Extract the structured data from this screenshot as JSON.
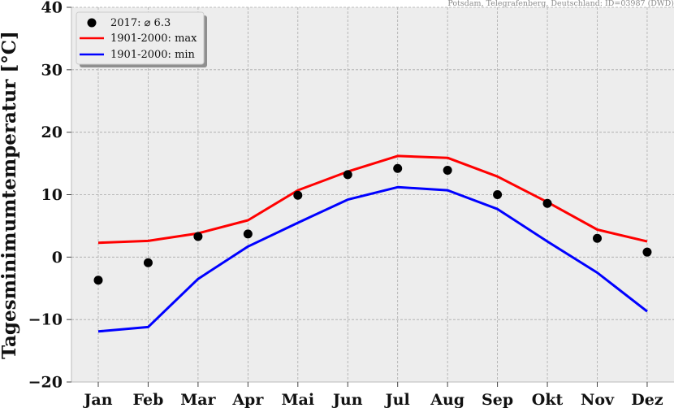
{
  "chart_data": {
    "type": "line",
    "source_note": "Potsdam, Telegrafenberg, Deutschland: ID=03987 (DWD)",
    "ylabel": "Tagesminimumtemperatur [°C]",
    "ylim": [
      -20,
      40
    ],
    "yticks": [
      -20,
      -10,
      0,
      10,
      20,
      30,
      40
    ],
    "yticklabels": [
      "−20",
      "−10",
      "0",
      "10",
      "20",
      "30",
      "40"
    ],
    "categories": [
      "Jan",
      "Feb",
      "Mar",
      "Apr",
      "Mai",
      "Jun",
      "Jul",
      "Aug",
      "Sep",
      "Okt",
      "Nov",
      "Dez"
    ],
    "grid": true,
    "legend_position": "top-left",
    "series": [
      {
        "name": "2017: ⌀ 6.3",
        "kind": "scatter",
        "color": "#000000",
        "values": [
          -3.7,
          -0.9,
          3.3,
          3.7,
          9.9,
          13.2,
          14.2,
          13.9,
          10.0,
          8.6,
          3.0,
          0.8
        ]
      },
      {
        "name": "1901-2000: max",
        "kind": "line",
        "color": "#ff0000",
        "values": [
          2.3,
          2.6,
          3.8,
          5.9,
          10.7,
          13.7,
          16.2,
          15.9,
          12.9,
          8.8,
          4.4,
          2.5
        ]
      },
      {
        "name": "1901-2000: min",
        "kind": "line",
        "color": "#0000ff",
        "values": [
          -11.9,
          -11.2,
          -3.5,
          1.7,
          5.5,
          9.2,
          11.2,
          10.7,
          7.7,
          2.5,
          -2.5,
          -8.7
        ]
      }
    ]
  }
}
